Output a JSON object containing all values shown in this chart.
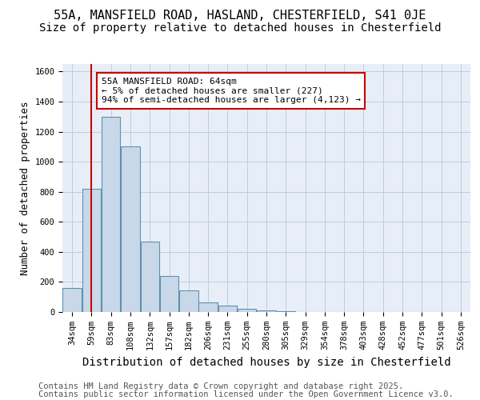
{
  "title1": "55A, MANSFIELD ROAD, HASLAND, CHESTERFIELD, S41 0JE",
  "title2": "Size of property relative to detached houses in Chesterfield",
  "xlabel": "Distribution of detached houses by size in Chesterfield",
  "ylabel": "Number of detached properties",
  "bar_values": [
    160,
    820,
    1300,
    1100,
    470,
    240,
    145,
    65,
    40,
    20,
    10,
    5,
    2,
    2,
    1,
    1,
    0,
    0,
    0,
    0,
    0
  ],
  "categories": [
    "34sqm",
    "59sqm",
    "83sqm",
    "108sqm",
    "132sqm",
    "157sqm",
    "182sqm",
    "206sqm",
    "231sqm",
    "255sqm",
    "280sqm",
    "305sqm",
    "329sqm",
    "354sqm",
    "378sqm",
    "403sqm",
    "428sqm",
    "452sqm",
    "477sqm",
    "501sqm",
    "526sqm"
  ],
  "bar_color": "#c8d8e8",
  "bar_edge_color": "#6090b0",
  "annotation_line1": "55A MANSFIELD ROAD: 64sqm",
  "annotation_line2": "← 5% of detached houses are smaller (227)",
  "annotation_line3": "94% of semi-detached houses are larger (4,123) →",
  "annotation_box_color": "#ffffff",
  "annotation_box_edge_color": "#cc0000",
  "vline_x": 1,
  "vline_color": "#cc0000",
  "ylim": [
    0,
    1650
  ],
  "yticks": [
    0,
    200,
    400,
    600,
    800,
    1000,
    1200,
    1400,
    1600
  ],
  "grid_color": "#c0ccdd",
  "bg_color": "#e8eef8",
  "footer_line1": "Contains HM Land Registry data © Crown copyright and database right 2025.",
  "footer_line2": "Contains public sector information licensed under the Open Government Licence v3.0.",
  "title1_fontsize": 11,
  "title2_fontsize": 10,
  "xlabel_fontsize": 10,
  "ylabel_fontsize": 9,
  "annotation_fontsize": 8.0,
  "footer_fontsize": 7.5,
  "tick_fontsize": 7.5
}
